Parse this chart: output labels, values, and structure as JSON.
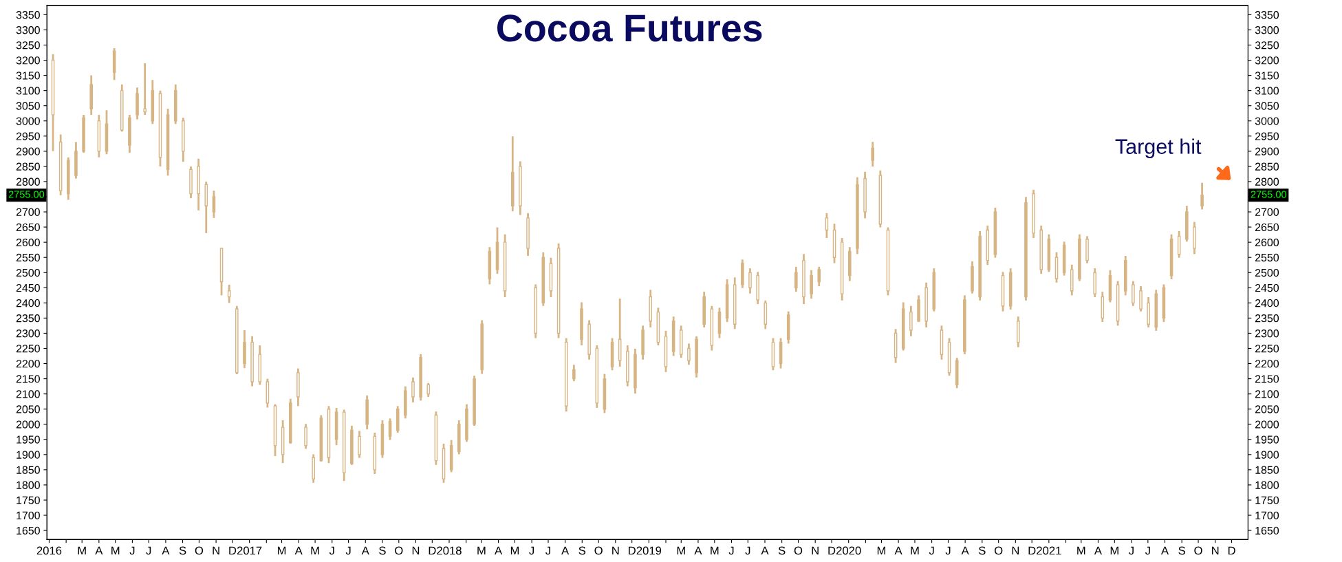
{
  "chart_data": {
    "type": "candlestick",
    "title": "Cocoa Futures",
    "color": "#d6b483",
    "x": [
      "2016-01-08",
      "2016-01-22",
      "2016-02-05",
      "2016-02-19",
      "2016-03-04",
      "2016-03-18",
      "2016-04-01",
      "2016-04-15",
      "2016-04-29",
      "2016-05-13",
      "2016-05-27",
      "2016-06-10",
      "2016-06-24",
      "2016-07-08",
      "2016-07-22",
      "2016-08-05",
      "2016-08-19",
      "2016-09-02",
      "2016-09-16",
      "2016-09-30",
      "2016-10-14",
      "2016-10-28",
      "2016-11-11",
      "2016-11-25",
      "2016-12-09",
      "2016-12-23",
      "2017-01-06",
      "2017-01-20",
      "2017-02-03",
      "2017-02-17",
      "2017-03-03",
      "2017-03-17",
      "2017-03-31",
      "2017-04-14",
      "2017-04-28",
      "2017-05-12",
      "2017-05-26",
      "2017-06-09",
      "2017-06-23",
      "2017-07-07",
      "2017-07-21",
      "2017-08-04",
      "2017-08-18",
      "2017-09-01",
      "2017-09-15",
      "2017-09-29",
      "2017-10-13",
      "2017-10-27",
      "2017-11-10",
      "2017-11-24",
      "2017-12-08",
      "2017-12-22",
      "2018-01-05",
      "2018-01-19",
      "2018-02-02",
      "2018-02-16",
      "2018-03-02",
      "2018-03-16",
      "2018-03-30",
      "2018-04-13",
      "2018-04-27",
      "2018-05-11",
      "2018-05-25",
      "2018-06-08",
      "2018-06-22",
      "2018-07-06",
      "2018-07-20",
      "2018-08-03",
      "2018-08-17",
      "2018-08-31",
      "2018-09-14",
      "2018-09-28",
      "2018-10-12",
      "2018-10-26",
      "2018-11-09",
      "2018-11-23",
      "2018-12-07",
      "2018-12-21",
      "2019-01-04",
      "2019-01-18",
      "2019-02-01",
      "2019-02-15",
      "2019-03-01",
      "2019-03-15",
      "2019-03-29",
      "2019-04-12",
      "2019-04-26",
      "2019-05-10",
      "2019-05-24",
      "2019-06-07",
      "2019-06-21",
      "2019-07-05",
      "2019-07-19",
      "2019-08-02",
      "2019-08-16",
      "2019-08-30",
      "2019-09-13",
      "2019-09-27",
      "2019-10-11",
      "2019-10-25",
      "2019-11-08",
      "2019-11-22",
      "2019-12-06",
      "2019-12-20",
      "2020-01-03",
      "2020-01-17",
      "2020-01-31",
      "2020-02-14",
      "2020-02-28",
      "2020-03-13",
      "2020-03-27",
      "2020-04-10",
      "2020-04-24",
      "2020-05-08",
      "2020-05-22",
      "2020-06-05",
      "2020-06-19",
      "2020-07-03",
      "2020-07-17",
      "2020-07-31",
      "2020-08-14",
      "2020-08-28",
      "2020-09-11",
      "2020-09-25",
      "2020-10-09",
      "2020-10-23",
      "2020-11-06",
      "2020-11-20",
      "2020-12-04",
      "2020-12-18",
      "2021-01-01",
      "2021-01-15",
      "2021-01-29",
      "2021-02-12",
      "2021-02-26",
      "2021-03-12",
      "2021-03-26",
      "2021-04-09",
      "2021-04-23",
      "2021-05-07",
      "2021-05-21",
      "2021-06-04",
      "2021-06-18",
      "2021-07-02",
      "2021-07-16",
      "2021-07-30",
      "2021-08-13",
      "2021-08-27",
      "2021-09-10",
      "2021-09-24",
      "2021-10-08"
    ],
    "ohlc": [
      [
        3200,
        3220,
        2900,
        3020
      ],
      [
        2930,
        2955,
        2755,
        2770
      ],
      [
        2760,
        2880,
        2740,
        2870
      ],
      [
        2820,
        2930,
        2810,
        2900
      ],
      [
        2900,
        3020,
        2895,
        3010
      ],
      [
        3040,
        3150,
        3020,
        3120
      ],
      [
        3000,
        3020,
        2880,
        2900
      ],
      [
        2900,
        3035,
        2890,
        2990
      ],
      [
        3160,
        3240,
        3135,
        3230
      ],
      [
        3100,
        3120,
        2965,
        2970
      ],
      [
        2920,
        3020,
        2895,
        3010
      ],
      [
        3020,
        3110,
        3005,
        3090
      ],
      [
        3040,
        3190,
        3020,
        3030
      ],
      [
        3000,
        3135,
        2990,
        3100
      ],
      [
        3090,
        3100,
        2850,
        2880
      ],
      [
        2840,
        3040,
        2820,
        3020
      ],
      [
        3000,
        3120,
        2990,
        3100
      ],
      [
        3000,
        3010,
        2865,
        2900
      ],
      [
        2840,
        2850,
        2745,
        2760
      ],
      [
        2850,
        2875,
        2705,
        2760
      ],
      [
        2790,
        2800,
        2630,
        2720
      ],
      [
        2700,
        2770,
        2680,
        2750
      ],
      [
        2580,
        2580,
        2425,
        2470
      ],
      [
        2440,
        2460,
        2400,
        2420
      ],
      [
        2380,
        2390,
        2165,
        2170
      ],
      [
        2200,
        2310,
        2185,
        2270
      ],
      [
        2270,
        2290,
        2125,
        2140
      ],
      [
        2230,
        2260,
        2130,
        2140
      ],
      [
        2140,
        2150,
        2055,
        2070
      ],
      [
        2060,
        2066,
        1895,
        1930
      ],
      [
        1990,
        2013,
        1872,
        1900
      ],
      [
        1940,
        2084,
        1936,
        2070
      ],
      [
        2170,
        2184,
        2060,
        2090
      ],
      [
        1990,
        2001,
        1919,
        1930
      ],
      [
        1890,
        1901,
        1807,
        1820
      ],
      [
        1880,
        2030,
        1877,
        2020
      ],
      [
        2050,
        2060,
        1872,
        1890
      ],
      [
        1950,
        2054,
        1931,
        2040
      ],
      [
        2040,
        2048,
        1813,
        1840
      ],
      [
        1870,
        1995,
        1866,
        1980
      ],
      [
        1960,
        1978,
        1889,
        1900
      ],
      [
        2000,
        2095,
        1983,
        2080
      ],
      [
        1960,
        1972,
        1836,
        1850
      ],
      [
        1900,
        2013,
        1889,
        2000
      ],
      [
        1960,
        2019,
        1948,
        2010
      ],
      [
        1980,
        2060,
        1972,
        2050
      ],
      [
        2030,
        2125,
        2019,
        2110
      ],
      [
        2140,
        2154,
        2072,
        2090
      ],
      [
        2090,
        2231,
        2078,
        2220
      ],
      [
        2130,
        2136,
        2090,
        2100
      ],
      [
        2030,
        2042,
        1866,
        1880
      ],
      [
        1920,
        1936,
        1807,
        1820
      ],
      [
        1850,
        1948,
        1842,
        1930
      ],
      [
        1910,
        2013,
        1901,
        2000
      ],
      [
        1950,
        2066,
        1942,
        2050
      ],
      [
        2000,
        2160,
        1995,
        2150
      ],
      [
        2180,
        2343,
        2166,
        2330
      ],
      [
        2480,
        2584,
        2461,
        2570
      ],
      [
        2510,
        2649,
        2496,
        2600
      ],
      [
        2600,
        2626,
        2419,
        2440
      ],
      [
        2720,
        2949,
        2702,
        2830
      ],
      [
        2850,
        2867,
        2690,
        2720
      ],
      [
        2680,
        2696,
        2555,
        2580
      ],
      [
        2450,
        2461,
        2284,
        2300
      ],
      [
        2400,
        2567,
        2390,
        2550
      ],
      [
        2530,
        2549,
        2419,
        2440
      ],
      [
        2580,
        2596,
        2284,
        2300
      ],
      [
        2270,
        2284,
        2042,
        2060
      ],
      [
        2150,
        2196,
        2142,
        2180
      ],
      [
        2280,
        2402,
        2260,
        2380
      ],
      [
        2330,
        2343,
        2213,
        2230
      ],
      [
        2250,
        2260,
        2054,
        2070
      ],
      [
        2050,
        2166,
        2037,
        2150
      ],
      [
        2190,
        2284,
        2178,
        2270
      ],
      [
        2280,
        2414,
        2190,
        2210
      ],
      [
        2240,
        2260,
        2125,
        2140
      ],
      [
        2120,
        2249,
        2101,
        2230
      ],
      [
        2230,
        2325,
        2213,
        2310
      ],
      [
        2420,
        2443,
        2319,
        2340
      ],
      [
        2370,
        2384,
        2260,
        2270
      ],
      [
        2290,
        2308,
        2172,
        2190
      ],
      [
        2240,
        2355,
        2225,
        2340
      ],
      [
        2310,
        2325,
        2219,
        2230
      ],
      [
        2250,
        2266,
        2196,
        2210
      ],
      [
        2170,
        2290,
        2154,
        2280
      ],
      [
        2330,
        2437,
        2319,
        2420
      ],
      [
        2380,
        2390,
        2243,
        2260
      ],
      [
        2300,
        2384,
        2284,
        2370
      ],
      [
        2350,
        2478,
        2337,
        2460
      ],
      [
        2460,
        2484,
        2314,
        2330
      ],
      [
        2460,
        2543,
        2449,
        2530
      ],
      [
        2500,
        2514,
        2431,
        2450
      ],
      [
        2490,
        2502,
        2396,
        2410
      ],
      [
        2400,
        2408,
        2314,
        2330
      ],
      [
        2270,
        2284,
        2178,
        2190
      ],
      [
        2200,
        2284,
        2184,
        2270
      ],
      [
        2280,
        2372,
        2266,
        2360
      ],
      [
        2450,
        2519,
        2437,
        2500
      ],
      [
        2540,
        2561,
        2396,
        2420
      ],
      [
        2430,
        2508,
        2414,
        2490
      ],
      [
        2470,
        2519,
        2455,
        2510
      ],
      [
        2680,
        2696,
        2614,
        2640
      ],
      [
        2640,
        2661,
        2531,
        2550
      ],
      [
        2600,
        2614,
        2408,
        2430
      ],
      [
        2490,
        2584,
        2472,
        2570
      ],
      [
        2580,
        2814,
        2561,
        2790
      ],
      [
        2810,
        2832,
        2679,
        2700
      ],
      [
        2870,
        2931,
        2849,
        2910
      ],
      [
        2820,
        2837,
        2649,
        2660
      ],
      [
        2640,
        2649,
        2425,
        2440
      ],
      [
        2300,
        2314,
        2202,
        2220
      ],
      [
        2250,
        2402,
        2243,
        2380
      ],
      [
        2370,
        2390,
        2290,
        2310
      ],
      [
        2340,
        2425,
        2337,
        2410
      ],
      [
        2450,
        2467,
        2319,
        2340
      ],
      [
        2380,
        2514,
        2372,
        2500
      ],
      [
        2310,
        2325,
        2213,
        2230
      ],
      [
        2270,
        2284,
        2160,
        2170
      ],
      [
        2130,
        2219,
        2119,
        2210
      ],
      [
        2240,
        2425,
        2231,
        2410
      ],
      [
        2440,
        2537,
        2431,
        2520
      ],
      [
        2420,
        2637,
        2408,
        2620
      ],
      [
        2640,
        2655,
        2525,
        2540
      ],
      [
        2560,
        2714,
        2549,
        2700
      ],
      [
        2490,
        2502,
        2372,
        2390
      ],
      [
        2390,
        2514,
        2378,
        2500
      ],
      [
        2340,
        2355,
        2254,
        2270
      ],
      [
        2420,
        2749,
        2408,
        2730
      ],
      [
        2760,
        2773,
        2614,
        2630
      ],
      [
        2640,
        2655,
        2496,
        2510
      ],
      [
        2510,
        2626,
        2502,
        2610
      ],
      [
        2550,
        2567,
        2467,
        2480
      ],
      [
        2500,
        2602,
        2490,
        2590
      ],
      [
        2510,
        2526,
        2425,
        2440
      ],
      [
        2480,
        2626,
        2472,
        2610
      ],
      [
        2610,
        2620,
        2531,
        2540
      ],
      [
        2500,
        2514,
        2419,
        2430
      ],
      [
        2420,
        2437,
        2337,
        2350
      ],
      [
        2410,
        2508,
        2402,
        2490
      ],
      [
        2460,
        2472,
        2325,
        2340
      ],
      [
        2440,
        2555,
        2425,
        2540
      ],
      [
        2460,
        2472,
        2390,
        2400
      ],
      [
        2440,
        2455,
        2372,
        2380
      ],
      [
        2400,
        2419,
        2319,
        2330
      ],
      [
        2320,
        2443,
        2308,
        2430
      ],
      [
        2350,
        2461,
        2337,
        2450
      ],
      [
        2490,
        2626,
        2478,
        2610
      ],
      [
        2620,
        2637,
        2549,
        2560
      ],
      [
        2610,
        2720,
        2602,
        2700
      ],
      [
        2650,
        2667,
        2561,
        2580
      ],
      [
        2720,
        2796,
        2708,
        2755
      ]
    ],
    "xlim": [
      "2015-12-28",
      "2021-12-31"
    ],
    "xticks": [
      {
        "value": "2016-01-01",
        "label": "2016"
      },
      {
        "value": "2016-02-01",
        "label": null
      },
      {
        "value": "2016-03-01",
        "label": "M"
      },
      {
        "value": "2016-04-01",
        "label": "A"
      },
      {
        "value": "2016-05-01",
        "label": "M"
      },
      {
        "value": "2016-06-01",
        "label": "J"
      },
      {
        "value": "2016-07-01",
        "label": "J"
      },
      {
        "value": "2016-08-01",
        "label": "A"
      },
      {
        "value": "2016-09-01",
        "label": "S"
      },
      {
        "value": "2016-10-01",
        "label": "O"
      },
      {
        "value": "2016-11-01",
        "label": "N"
      },
      {
        "value": "2016-12-01",
        "label": "D"
      },
      {
        "value": "2017-01-01",
        "label": "2017"
      },
      {
        "value": "2017-02-01",
        "label": null
      },
      {
        "value": "2017-03-01",
        "label": "M"
      },
      {
        "value": "2017-04-01",
        "label": "A"
      },
      {
        "value": "2017-05-01",
        "label": "M"
      },
      {
        "value": "2017-06-01",
        "label": "J"
      },
      {
        "value": "2017-07-01",
        "label": "J"
      },
      {
        "value": "2017-08-01",
        "label": "A"
      },
      {
        "value": "2017-09-01",
        "label": "S"
      },
      {
        "value": "2017-10-01",
        "label": "O"
      },
      {
        "value": "2017-11-01",
        "label": "N"
      },
      {
        "value": "2017-12-01",
        "label": "D"
      },
      {
        "value": "2018-01-01",
        "label": "2018"
      },
      {
        "value": "2018-02-01",
        "label": null
      },
      {
        "value": "2018-03-01",
        "label": "M"
      },
      {
        "value": "2018-04-01",
        "label": "A"
      },
      {
        "value": "2018-05-01",
        "label": "M"
      },
      {
        "value": "2018-06-01",
        "label": "J"
      },
      {
        "value": "2018-07-01",
        "label": "J"
      },
      {
        "value": "2018-08-01",
        "label": "A"
      },
      {
        "value": "2018-09-01",
        "label": "S"
      },
      {
        "value": "2018-10-01",
        "label": "O"
      },
      {
        "value": "2018-11-01",
        "label": "N"
      },
      {
        "value": "2018-12-01",
        "label": "D"
      },
      {
        "value": "2019-01-01",
        "label": "2019"
      },
      {
        "value": "2019-02-01",
        "label": null
      },
      {
        "value": "2019-03-01",
        "label": "M"
      },
      {
        "value": "2019-04-01",
        "label": "A"
      },
      {
        "value": "2019-05-01",
        "label": "M"
      },
      {
        "value": "2019-06-01",
        "label": "J"
      },
      {
        "value": "2019-07-01",
        "label": "J"
      },
      {
        "value": "2019-08-01",
        "label": "A"
      },
      {
        "value": "2019-09-01",
        "label": "S"
      },
      {
        "value": "2019-10-01",
        "label": "O"
      },
      {
        "value": "2019-11-01",
        "label": "N"
      },
      {
        "value": "2019-12-01",
        "label": "D"
      },
      {
        "value": "2020-01-01",
        "label": "2020"
      },
      {
        "value": "2020-02-01",
        "label": null
      },
      {
        "value": "2020-03-01",
        "label": "M"
      },
      {
        "value": "2020-04-01",
        "label": "A"
      },
      {
        "value": "2020-05-01",
        "label": "M"
      },
      {
        "value": "2020-06-01",
        "label": "J"
      },
      {
        "value": "2020-07-01",
        "label": "J"
      },
      {
        "value": "2020-08-01",
        "label": "A"
      },
      {
        "value": "2020-09-01",
        "label": "S"
      },
      {
        "value": "2020-10-01",
        "label": "O"
      },
      {
        "value": "2020-11-01",
        "label": "N"
      },
      {
        "value": "2020-12-01",
        "label": "D"
      },
      {
        "value": "2021-01-01",
        "label": "2021"
      },
      {
        "value": "2021-02-01",
        "label": null
      },
      {
        "value": "2021-03-01",
        "label": "M"
      },
      {
        "value": "2021-04-01",
        "label": "A"
      },
      {
        "value": "2021-05-01",
        "label": "M"
      },
      {
        "value": "2021-06-01",
        "label": "J"
      },
      {
        "value": "2021-07-01",
        "label": "J"
      },
      {
        "value": "2021-08-01",
        "label": "A"
      },
      {
        "value": "2021-09-01",
        "label": "S"
      },
      {
        "value": "2021-10-01",
        "label": "O"
      },
      {
        "value": "2021-11-01",
        "label": "N"
      },
      {
        "value": "2021-12-01",
        "label": "D"
      }
    ],
    "ylim": [
      1620,
      3380
    ],
    "yticks": [
      1650,
      1700,
      1750,
      1800,
      1850,
      1900,
      1950,
      2000,
      2050,
      2100,
      2150,
      2200,
      2250,
      2300,
      2350,
      2400,
      2450,
      2500,
      2550,
      2600,
      2650,
      2700,
      {
        "value": 2750,
        "label": null
      },
      2800,
      2850,
      2900,
      2950,
      3000,
      3050,
      3100,
      3150,
      3200,
      3250,
      3300,
      3350
    ],
    "y2lim": [
      1620,
      3380
    ],
    "y2ticks": [
      1650,
      1700,
      1750,
      1800,
      1850,
      1900,
      1950,
      2000,
      2050,
      2100,
      2150,
      2200,
      2250,
      2300,
      2350,
      2400,
      2450,
      2500,
      2550,
      2600,
      2650,
      2700,
      {
        "value": 2750,
        "label": null
      },
      2800,
      2850,
      2900,
      2950,
      3000,
      3050,
      3100,
      3150,
      3200,
      3250,
      3300,
      3350
    ],
    "annotations": [
      "2755.00",
      {
        "text": "Target hit",
        "x": "2021-10-08",
        "y": 2796
      }
    ]
  }
}
